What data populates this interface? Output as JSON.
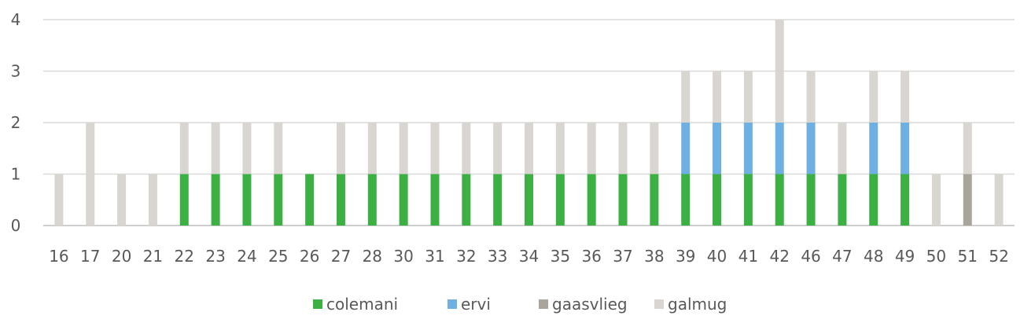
{
  "chart_data": {
    "type": "bar",
    "stacked": true,
    "categories": [
      "16",
      "17",
      "20",
      "21",
      "22",
      "23",
      "24",
      "25",
      "26",
      "27",
      "28",
      "30",
      "31",
      "32",
      "33",
      "34",
      "35",
      "36",
      "37",
      "38",
      "39",
      "40",
      "41",
      "42",
      "46",
      "47",
      "48",
      "49",
      "50",
      "51",
      "52"
    ],
    "series": [
      {
        "name": "colemani",
        "color": "#3cb043",
        "values": [
          0,
          0,
          0,
          0,
          1,
          1,
          1,
          1,
          1,
          1,
          1,
          1,
          1,
          1,
          1,
          1,
          1,
          1,
          1,
          1,
          1,
          1,
          1,
          1,
          1,
          1,
          1,
          1,
          0,
          0,
          0
        ]
      },
      {
        "name": "ervi",
        "color": "#6fb0e3",
        "values": [
          0,
          0,
          0,
          0,
          0,
          0,
          0,
          0,
          0,
          0,
          0,
          0,
          0,
          0,
          0,
          0,
          0,
          0,
          0,
          0,
          1,
          1,
          1,
          1,
          1,
          0,
          1,
          1,
          0,
          0,
          0
        ]
      },
      {
        "name": "gaasvlieg",
        "color": "#aaa59b",
        "values": [
          0,
          0,
          0,
          0,
          0,
          0,
          0,
          0,
          0,
          0,
          0,
          0,
          0,
          0,
          0,
          0,
          0,
          0,
          0,
          0,
          0,
          0,
          0,
          0,
          0,
          0,
          0,
          0,
          0,
          1,
          0
        ]
      },
      {
        "name": "galmug",
        "color": "#d9d6d1",
        "values": [
          1,
          2,
          1,
          1,
          1,
          1,
          1,
          1,
          0,
          1,
          1,
          1,
          1,
          1,
          1,
          1,
          1,
          1,
          1,
          1,
          1,
          1,
          1,
          2,
          1,
          1,
          1,
          1,
          1,
          1,
          1
        ]
      }
    ],
    "yticks": [
      "0",
      "1",
      "2",
      "3",
      "4"
    ],
    "ylim": [
      0,
      4
    ],
    "grid": true,
    "legend_position": "bottom",
    "title": "",
    "xlabel": "",
    "ylabel": ""
  }
}
